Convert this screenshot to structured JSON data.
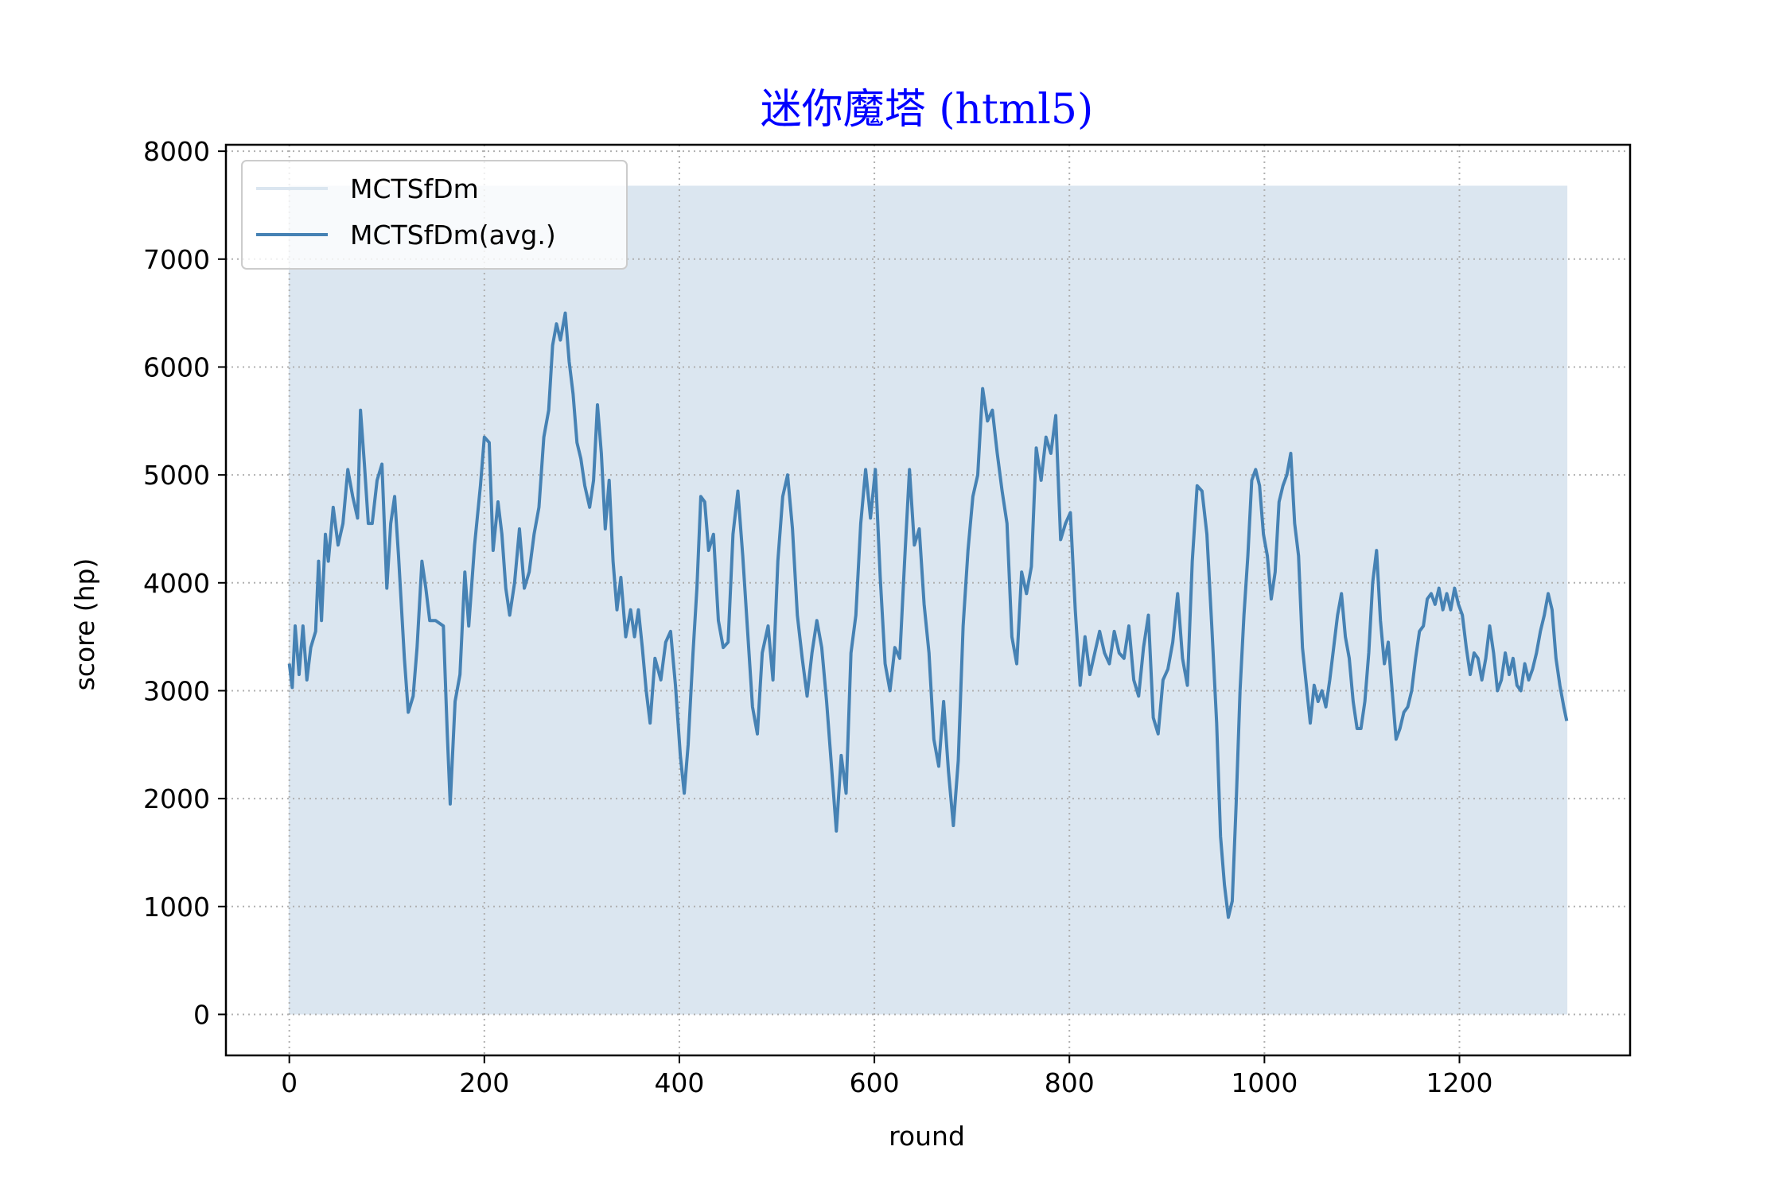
{
  "chart_data": {
    "type": "line",
    "title": "迷你魔塔 (html5)",
    "title_color": "#0000ff",
    "xlabel": "round",
    "ylabel": "score (hp)",
    "xlim": [
      -65,
      1375
    ],
    "ylim": [
      -380,
      8060
    ],
    "xticks": [
      0,
      200,
      400,
      600,
      800,
      1000,
      1200
    ],
    "yticks": [
      0,
      1000,
      2000,
      3000,
      4000,
      5000,
      6000,
      7000,
      8000
    ],
    "grid": true,
    "legend_position": "upper-left",
    "series": [
      {
        "name": "MCTSfDm",
        "color": "#dbe6f0",
        "style": "raw scores alternating between 0 and about 7680 every round",
        "x_range": [
          0,
          1310
        ],
        "low": 0,
        "high": 7680
      },
      {
        "name": "MCTSfDm(avg.)",
        "color": "#4682b4",
        "points": [
          [
            0,
            3250
          ],
          [
            3,
            3030
          ],
          [
            6,
            3600
          ],
          [
            10,
            3150
          ],
          [
            14,
            3600
          ],
          [
            18,
            3100
          ],
          [
            22,
            3400
          ],
          [
            27,
            3550
          ],
          [
            30,
            4200
          ],
          [
            33,
            3650
          ],
          [
            37,
            4450
          ],
          [
            40,
            4200
          ],
          [
            45,
            4700
          ],
          [
            50,
            4350
          ],
          [
            55,
            4550
          ],
          [
            60,
            5050
          ],
          [
            65,
            4800
          ],
          [
            70,
            4600
          ],
          [
            73,
            5600
          ],
          [
            77,
            5100
          ],
          [
            81,
            4550
          ],
          [
            85,
            4550
          ],
          [
            90,
            4950
          ],
          [
            95,
            5100
          ],
          [
            100,
            3950
          ],
          [
            104,
            4550
          ],
          [
            108,
            4800
          ],
          [
            112,
            4250
          ],
          [
            118,
            3300
          ],
          [
            122,
            2800
          ],
          [
            127,
            2950
          ],
          [
            131,
            3400
          ],
          [
            136,
            4200
          ],
          [
            140,
            3950
          ],
          [
            144,
            3650
          ],
          [
            150,
            3650
          ],
          [
            158,
            3600
          ],
          [
            162,
            2600
          ],
          [
            165,
            1950
          ],
          [
            170,
            2900
          ],
          [
            175,
            3150
          ],
          [
            180,
            4100
          ],
          [
            184,
            3600
          ],
          [
            190,
            4350
          ],
          [
            196,
            4900
          ],
          [
            200,
            5350
          ],
          [
            205,
            5300
          ],
          [
            209,
            4300
          ],
          [
            214,
            4750
          ],
          [
            218,
            4450
          ],
          [
            222,
            3950
          ],
          [
            226,
            3700
          ],
          [
            231,
            4000
          ],
          [
            236,
            4500
          ],
          [
            241,
            3950
          ],
          [
            246,
            4100
          ],
          [
            251,
            4450
          ],
          [
            256,
            4700
          ],
          [
            261,
            5350
          ],
          [
            266,
            5600
          ],
          [
            270,
            6200
          ],
          [
            274,
            6400
          ],
          [
            278,
            6250
          ],
          [
            283,
            6500
          ],
          [
            287,
            6050
          ],
          [
            291,
            5750
          ],
          [
            295,
            5300
          ],
          [
            299,
            5150
          ],
          [
            303,
            4900
          ],
          [
            308,
            4700
          ],
          [
            312,
            4950
          ],
          [
            316,
            5650
          ],
          [
            320,
            5200
          ],
          [
            324,
            4500
          ],
          [
            328,
            4950
          ],
          [
            332,
            4200
          ],
          [
            336,
            3750
          ],
          [
            340,
            4050
          ],
          [
            345,
            3500
          ],
          [
            350,
            3750
          ],
          [
            354,
            3500
          ],
          [
            358,
            3750
          ],
          [
            362,
            3400
          ],
          [
            366,
            3000
          ],
          [
            370,
            2700
          ],
          [
            375,
            3300
          ],
          [
            381,
            3100
          ],
          [
            386,
            3450
          ],
          [
            391,
            3550
          ],
          [
            396,
            3050
          ],
          [
            401,
            2400
          ],
          [
            405,
            2050
          ],
          [
            409,
            2500
          ],
          [
            414,
            3350
          ],
          [
            418,
            3950
          ],
          [
            422,
            4800
          ],
          [
            426,
            4750
          ],
          [
            430,
            4300
          ],
          [
            435,
            4450
          ],
          [
            440,
            3650
          ],
          [
            445,
            3400
          ],
          [
            450,
            3450
          ],
          [
            455,
            4450
          ],
          [
            460,
            4850
          ],
          [
            465,
            4250
          ],
          [
            470,
            3550
          ],
          [
            475,
            2850
          ],
          [
            480,
            2600
          ],
          [
            485,
            3350
          ],
          [
            491,
            3600
          ],
          [
            496,
            3100
          ],
          [
            501,
            4200
          ],
          [
            506,
            4800
          ],
          [
            511,
            5000
          ],
          [
            516,
            4500
          ],
          [
            521,
            3700
          ],
          [
            526,
            3300
          ],
          [
            531,
            2950
          ],
          [
            536,
            3350
          ],
          [
            541,
            3650
          ],
          [
            546,
            3400
          ],
          [
            551,
            2900
          ],
          [
            556,
            2300
          ],
          [
            561,
            1700
          ],
          [
            566,
            2400
          ],
          [
            571,
            2050
          ],
          [
            576,
            3350
          ],
          [
            581,
            3700
          ],
          [
            586,
            4550
          ],
          [
            591,
            5050
          ],
          [
            596,
            4600
          ],
          [
            601,
            5050
          ],
          [
            606,
            4050
          ],
          [
            611,
            3250
          ],
          [
            616,
            3000
          ],
          [
            621,
            3400
          ],
          [
            626,
            3300
          ],
          [
            631,
            4200
          ],
          [
            636,
            5050
          ],
          [
            641,
            4350
          ],
          [
            646,
            4500
          ],
          [
            651,
            3800
          ],
          [
            656,
            3350
          ],
          [
            661,
            2550
          ],
          [
            666,
            2300
          ],
          [
            671,
            2900
          ],
          [
            676,
            2250
          ],
          [
            681,
            1750
          ],
          [
            686,
            2350
          ],
          [
            691,
            3600
          ],
          [
            696,
            4300
          ],
          [
            701,
            4800
          ],
          [
            706,
            5000
          ],
          [
            711,
            5800
          ],
          [
            716,
            5500
          ],
          [
            721,
            5600
          ],
          [
            726,
            5200
          ],
          [
            731,
            4850
          ],
          [
            736,
            4550
          ],
          [
            741,
            3500
          ],
          [
            746,
            3250
          ],
          [
            751,
            4100
          ],
          [
            756,
            3900
          ],
          [
            761,
            4150
          ],
          [
            766,
            5250
          ],
          [
            771,
            4950
          ],
          [
            776,
            5350
          ],
          [
            781,
            5200
          ],
          [
            786,
            5550
          ],
          [
            791,
            4400
          ],
          [
            796,
            4550
          ],
          [
            801,
            4650
          ],
          [
            806,
            3750
          ],
          [
            811,
            3050
          ],
          [
            816,
            3500
          ],
          [
            821,
            3150
          ],
          [
            826,
            3350
          ],
          [
            831,
            3550
          ],
          [
            836,
            3350
          ],
          [
            841,
            3250
          ],
          [
            846,
            3550
          ],
          [
            851,
            3350
          ],
          [
            856,
            3300
          ],
          [
            861,
            3600
          ],
          [
            866,
            3100
          ],
          [
            871,
            2950
          ],
          [
            876,
            3400
          ],
          [
            881,
            3700
          ],
          [
            886,
            2750
          ],
          [
            891,
            2600
          ],
          [
            896,
            3100
          ],
          [
            901,
            3200
          ],
          [
            906,
            3450
          ],
          [
            911,
            3900
          ],
          [
            916,
            3300
          ],
          [
            921,
            3050
          ],
          [
            926,
            4200
          ],
          [
            931,
            4900
          ],
          [
            936,
            4850
          ],
          [
            941,
            4450
          ],
          [
            946,
            3600
          ],
          [
            951,
            2700
          ],
          [
            955,
            1650
          ],
          [
            959,
            1200
          ],
          [
            963,
            900
          ],
          [
            967,
            1050
          ],
          [
            971,
            1950
          ],
          [
            975,
            3000
          ],
          [
            979,
            3700
          ],
          [
            983,
            4250
          ],
          [
            987,
            4950
          ],
          [
            991,
            5050
          ],
          [
            995,
            4900
          ],
          [
            999,
            4450
          ],
          [
            1003,
            4250
          ],
          [
            1007,
            3850
          ],
          [
            1011,
            4100
          ],
          [
            1015,
            4750
          ],
          [
            1019,
            4900
          ],
          [
            1023,
            5000
          ],
          [
            1027,
            5200
          ],
          [
            1031,
            4550
          ],
          [
            1035,
            4250
          ],
          [
            1039,
            3400
          ],
          [
            1043,
            3050
          ],
          [
            1047,
            2700
          ],
          [
            1051,
            3050
          ],
          [
            1055,
            2900
          ],
          [
            1059,
            3000
          ],
          [
            1063,
            2850
          ],
          [
            1067,
            3100
          ],
          [
            1071,
            3400
          ],
          [
            1075,
            3700
          ],
          [
            1079,
            3900
          ],
          [
            1083,
            3500
          ],
          [
            1087,
            3300
          ],
          [
            1091,
            2900
          ],
          [
            1095,
            2650
          ],
          [
            1099,
            2650
          ],
          [
            1103,
            2900
          ],
          [
            1107,
            3350
          ],
          [
            1111,
            4000
          ],
          [
            1115,
            4300
          ],
          [
            1119,
            3650
          ],
          [
            1123,
            3250
          ],
          [
            1127,
            3450
          ],
          [
            1131,
            3000
          ],
          [
            1135,
            2550
          ],
          [
            1139,
            2650
          ],
          [
            1143,
            2800
          ],
          [
            1147,
            2850
          ],
          [
            1151,
            3000
          ],
          [
            1155,
            3300
          ],
          [
            1159,
            3550
          ],
          [
            1163,
            3600
          ],
          [
            1167,
            3850
          ],
          [
            1171,
            3900
          ],
          [
            1175,
            3800
          ],
          [
            1179,
            3950
          ],
          [
            1183,
            3750
          ],
          [
            1187,
            3900
          ],
          [
            1191,
            3750
          ],
          [
            1195,
            3950
          ],
          [
            1199,
            3800
          ],
          [
            1203,
            3700
          ],
          [
            1207,
            3400
          ],
          [
            1211,
            3150
          ],
          [
            1215,
            3350
          ],
          [
            1219,
            3300
          ],
          [
            1223,
            3100
          ],
          [
            1227,
            3300
          ],
          [
            1231,
            3600
          ],
          [
            1235,
            3350
          ],
          [
            1239,
            3000
          ],
          [
            1243,
            3100
          ],
          [
            1247,
            3350
          ],
          [
            1251,
            3150
          ],
          [
            1255,
            3300
          ],
          [
            1259,
            3050
          ],
          [
            1263,
            3000
          ],
          [
            1267,
            3250
          ],
          [
            1271,
            3100
          ],
          [
            1275,
            3200
          ],
          [
            1279,
            3350
          ],
          [
            1283,
            3550
          ],
          [
            1287,
            3700
          ],
          [
            1291,
            3900
          ],
          [
            1295,
            3750
          ],
          [
            1299,
            3300
          ],
          [
            1303,
            3050
          ],
          [
            1307,
            2850
          ],
          [
            1310,
            2720
          ]
        ]
      }
    ]
  }
}
